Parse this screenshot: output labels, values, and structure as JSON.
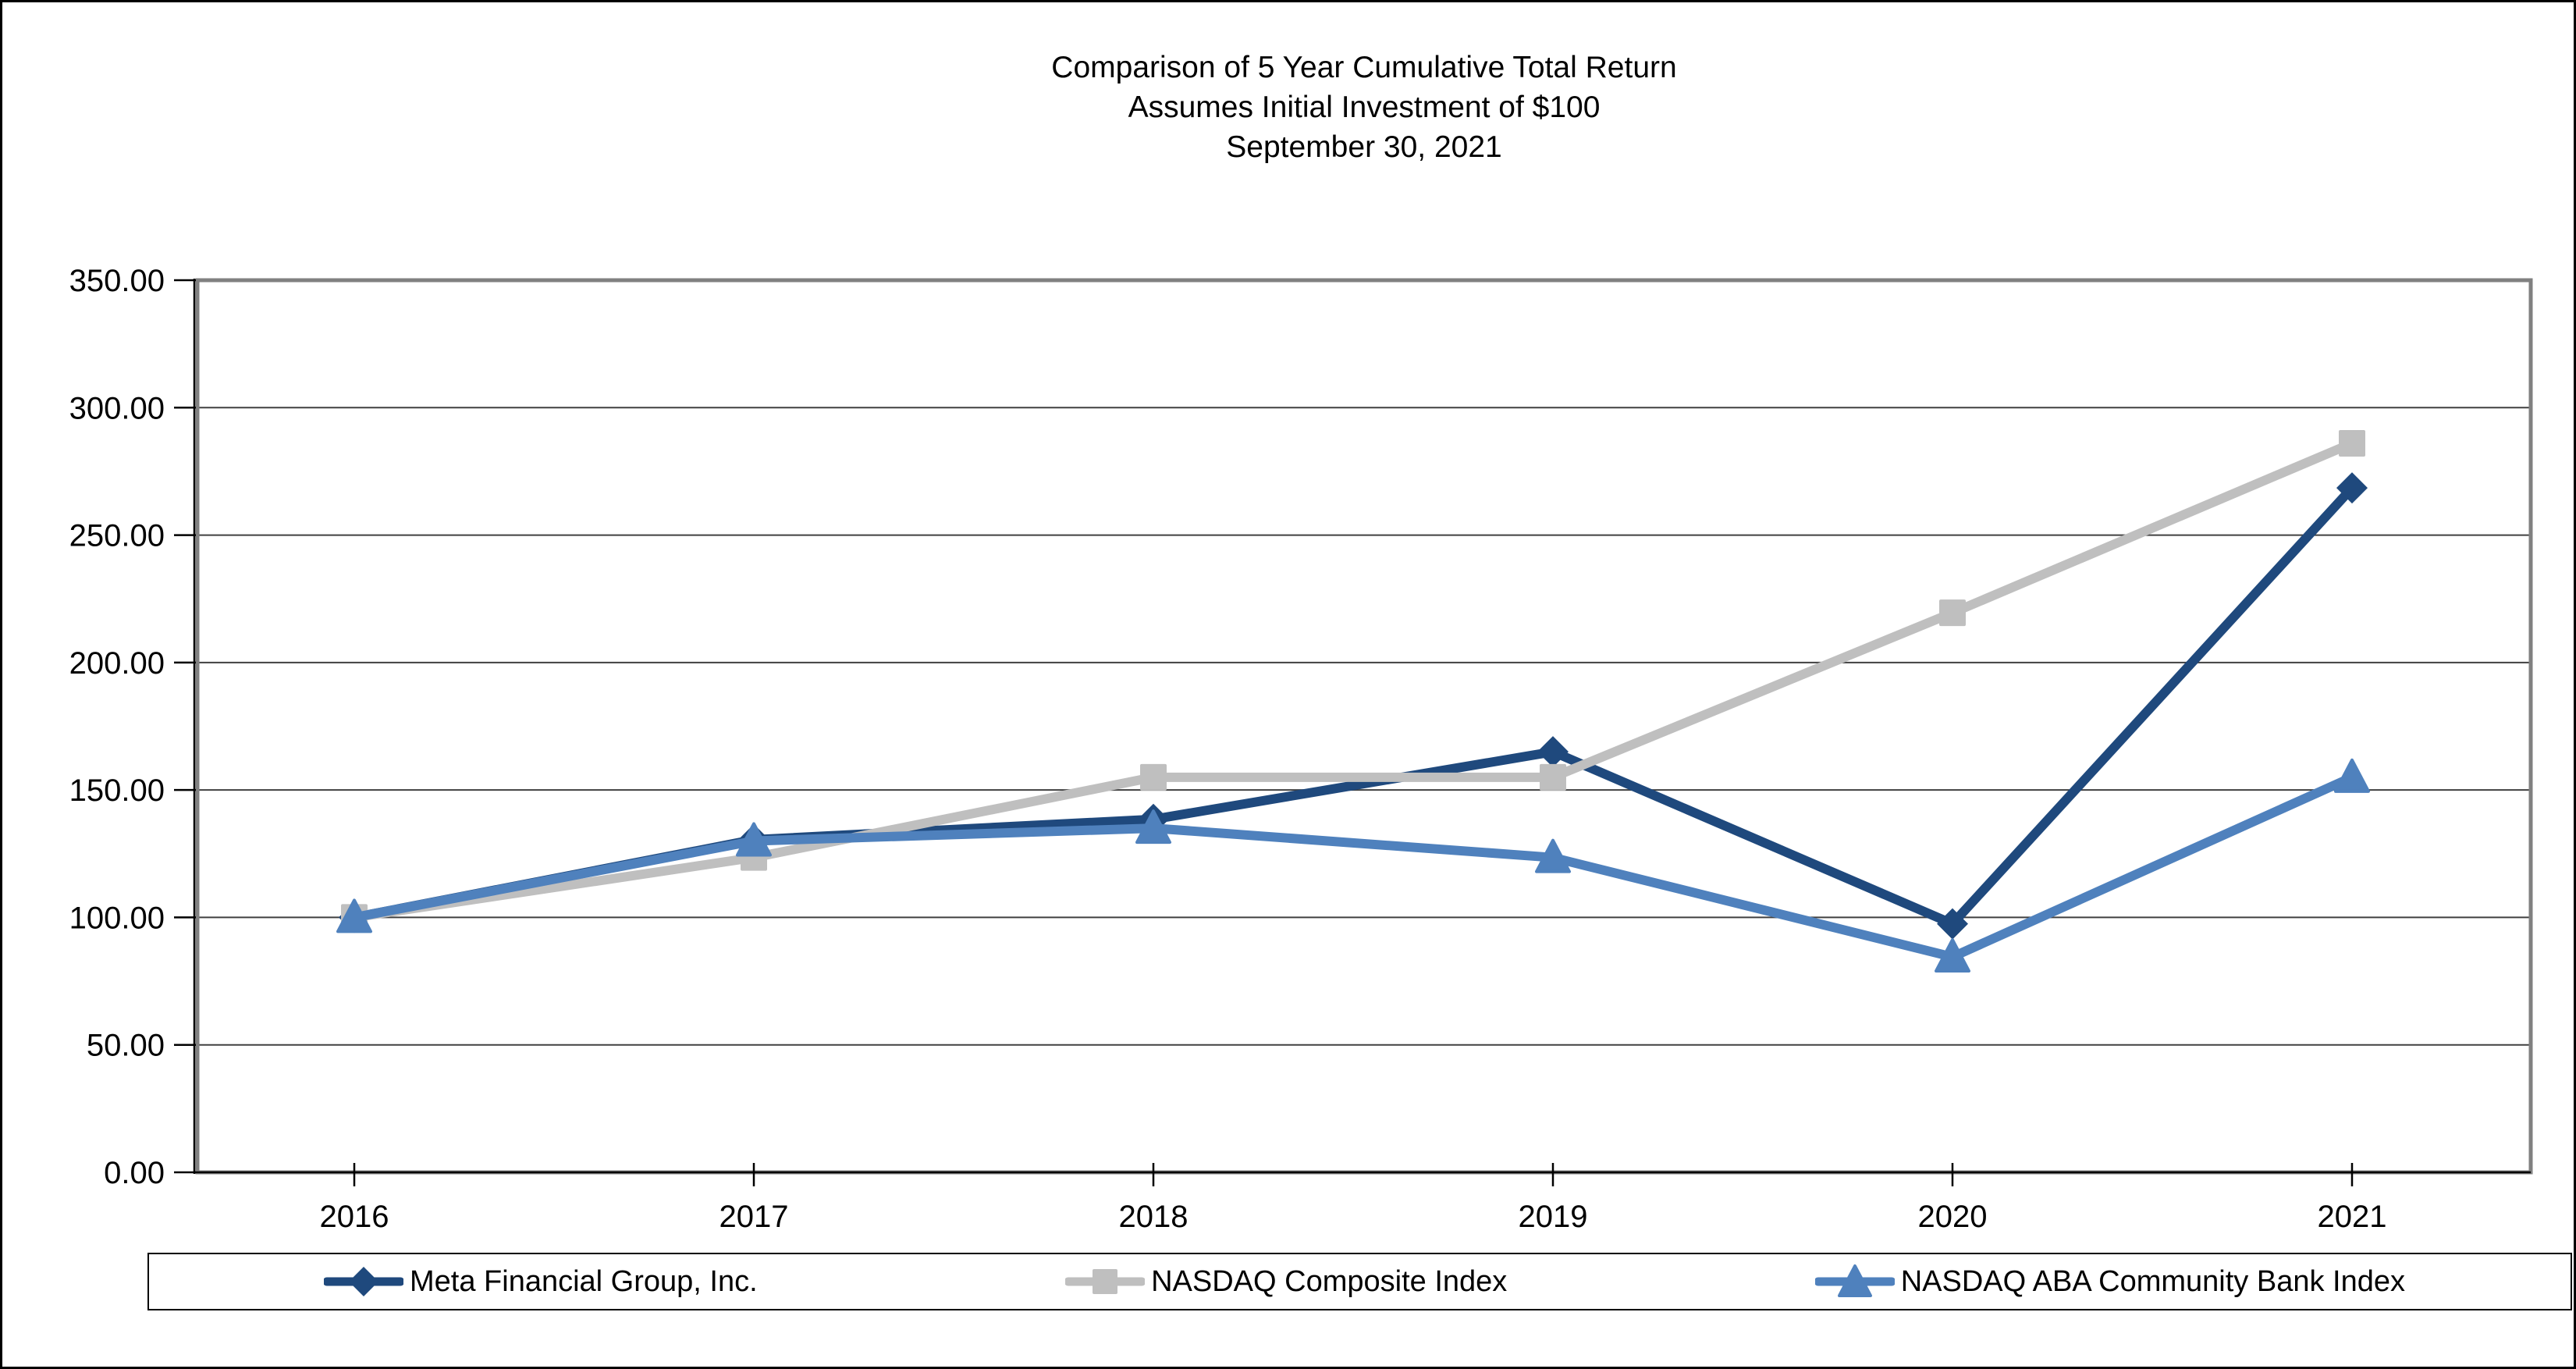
{
  "page": {
    "title_lines": [
      "Comparison of 5 Year Cumulative Total Return",
      "Assumes Initial Investment of $100",
      "September 30, 2021"
    ]
  },
  "chart_data": {
    "type": "line",
    "title": "Comparison of 5 Year Cumulative Total Return",
    "subtitle": "Assumes Initial Investment of $100",
    "date_label": "September 30, 2021",
    "categories": [
      "2016",
      "2017",
      "2018",
      "2019",
      "2020",
      "2021"
    ],
    "series": [
      {
        "name": "Meta Financial Group, Inc.",
        "marker": "diamond",
        "color": "#1F497D",
        "values": [
          100.0,
          130.5,
          138.5,
          165.0,
          97.5,
          268.5
        ]
      },
      {
        "name": "NASDAQ Composite Index",
        "marker": "square",
        "color": "#BFBFBF",
        "values": [
          100.0,
          123.5,
          155.0,
          155.0,
          219.5,
          286.0
        ]
      },
      {
        "name": "NASDAQ ABA Community Bank Index",
        "marker": "triangle",
        "color": "#4F81BD",
        "values": [
          100.0,
          130.0,
          135.0,
          123.5,
          84.5,
          155.0
        ]
      }
    ],
    "ylim": [
      0,
      350
    ],
    "ytick_step": 50,
    "ytick_labels": [
      "0.00",
      "50.00",
      "100.00",
      "150.00",
      "200.00",
      "250.00",
      "300.00",
      "350.00"
    ],
    "grid": "horizontal",
    "legend_position": "bottom",
    "colors": {
      "gridline": "#404040",
      "axis": "#000000",
      "plot_border": "#808080"
    }
  }
}
